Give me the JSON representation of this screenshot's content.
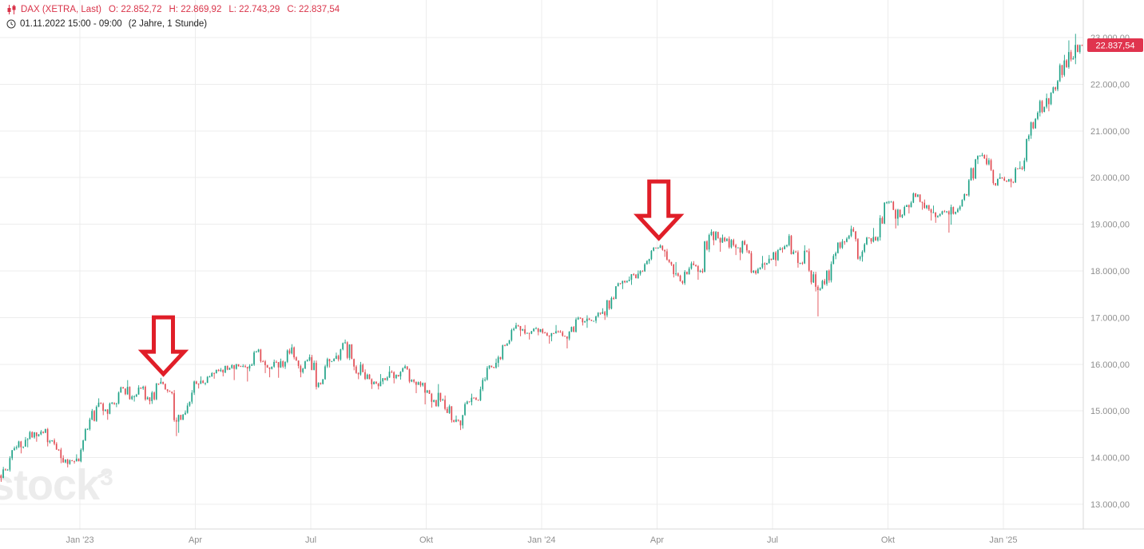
{
  "header": {
    "symbol": "DAX (XETRA, Last)",
    "accent_color": "#d93349",
    "ohlc": [
      {
        "label": "O:",
        "value": "22.852,72"
      },
      {
        "label": "H:",
        "value": "22.869,92"
      },
      {
        "label": "L:",
        "value": "22.743,29"
      },
      {
        "label": "C:",
        "value": "22.837,54"
      }
    ],
    "date_range": "01.11.2022 15:00 - 09:00",
    "period": "(2 Jahre, 1 Stunde)"
  },
  "watermark": {
    "text": "stock",
    "sup": "3"
  },
  "price_tag": {
    "value": "22.837,54",
    "price": 22837.54,
    "bg": "#e0344e",
    "text_color": "#ffffff"
  },
  "annotations": {
    "color": "#e01e28",
    "arrows": [
      {
        "shape": "arrow-down",
        "week": 18.4,
        "price": 15790
      },
      {
        "shape": "arrow-down",
        "week": 74.2,
        "price": 18700
      }
    ]
  },
  "chart_data": {
    "type": "candlestick",
    "symbol": "DAX",
    "exchange": "XETRA",
    "interval": "1 Stunde",
    "range": "2 Jahre",
    "last_candle": {
      "open": 22852.72,
      "high": 22869.92,
      "low": 22743.29,
      "close": 22837.54
    },
    "ylim": [
      12470,
      23800
    ],
    "grid": true,
    "legend_position": "none",
    "colors": {
      "up": "#1fa287",
      "down": "#e14b52",
      "grid": "#ececec",
      "axis_text": "#8f8f8f",
      "axis_line": "#d9d9d9"
    },
    "y_ticks": [
      {
        "value": 23000,
        "label": "23.000,00"
      },
      {
        "value": 22000,
        "label": "22.000,00"
      },
      {
        "value": 21000,
        "label": "21.000,00"
      },
      {
        "value": 20000,
        "label": "20.000,00"
      },
      {
        "value": 19000,
        "label": "19.000,00"
      },
      {
        "value": 18000,
        "label": "18.000,00"
      },
      {
        "value": 17000,
        "label": "17.000,00"
      },
      {
        "value": 16000,
        "label": "16.000,00"
      },
      {
        "value": 15000,
        "label": "15.000,00"
      },
      {
        "value": 14000,
        "label": "14.000,00"
      },
      {
        "value": 13000,
        "label": "13.000,00"
      }
    ],
    "x_ticks": [
      {
        "week": 9,
        "label": "Jan '23"
      },
      {
        "week": 22,
        "label": "Apr"
      },
      {
        "week": 35,
        "label": "Jul"
      },
      {
        "week": 48,
        "label": "Okt"
      },
      {
        "week": 61,
        "label": "Jan '24"
      },
      {
        "week": 74,
        "label": "Apr"
      },
      {
        "week": 87,
        "label": "Jul"
      },
      {
        "week": 100,
        "label": "Okt"
      },
      {
        "week": 113,
        "label": "Jan '25"
      }
    ],
    "x_unit": "week",
    "weeks_ohlc": [
      [
        13620,
        13800,
        13480,
        13740
      ],
      [
        13740,
        14260,
        13700,
        14225
      ],
      [
        14225,
        14440,
        14090,
        14380
      ],
      [
        14380,
        14570,
        14220,
        14540
      ],
      [
        14540,
        14590,
        14340,
        14530
      ],
      [
        14530,
        14620,
        14240,
        14370
      ],
      [
        14370,
        14410,
        13880,
        13990
      ],
      [
        13990,
        14050,
        13790,
        13940
      ],
      [
        13940,
        14070,
        13870,
        13920
      ],
      [
        13920,
        14630,
        13900,
        14610
      ],
      [
        14610,
        15120,
        14580,
        15090
      ],
      [
        15090,
        15270,
        14910,
        15030
      ],
      [
        15030,
        15190,
        14810,
        15150
      ],
      [
        15150,
        15520,
        15080,
        15480
      ],
      [
        15480,
        15660,
        15240,
        15310
      ],
      [
        15310,
        15550,
        15200,
        15480
      ],
      [
        15480,
        15540,
        15140,
        15210
      ],
      [
        15210,
        15600,
        15150,
        15580
      ],
      [
        15580,
        15710,
        15390,
        15430
      ],
      [
        15430,
        15440,
        14460,
        14770
      ],
      [
        14770,
        15010,
        14530,
        14960
      ],
      [
        14960,
        15650,
        14940,
        15630
      ],
      [
        15630,
        15740,
        15480,
        15600
      ],
      [
        15600,
        15830,
        15550,
        15810
      ],
      [
        15810,
        15920,
        15690,
        15880
      ],
      [
        15880,
        15970,
        15740,
        15920
      ],
      [
        15920,
        16010,
        15660,
        15960
      ],
      [
        15960,
        16000,
        15630,
        15910
      ],
      [
        15910,
        16290,
        15850,
        16270
      ],
      [
        16270,
        16330,
        15810,
        15980
      ],
      [
        15980,
        16100,
        15720,
        16050
      ],
      [
        16050,
        16120,
        15710,
        15950
      ],
      [
        15950,
        16430,
        15900,
        16360
      ],
      [
        16360,
        16380,
        15720,
        15830
      ],
      [
        15830,
        16210,
        15800,
        16150
      ],
      [
        16150,
        16200,
        15460,
        15600
      ],
      [
        15600,
        16140,
        15560,
        16110
      ],
      [
        16110,
        16250,
        15930,
        16180
      ],
      [
        16180,
        16530,
        16060,
        16470
      ],
      [
        16470,
        16490,
        15870,
        15950
      ],
      [
        15950,
        16050,
        15680,
        15830
      ],
      [
        15830,
        15890,
        15470,
        15570
      ],
      [
        15570,
        15790,
        15460,
        15630
      ],
      [
        15630,
        15960,
        15570,
        15840
      ],
      [
        15840,
        15870,
        15590,
        15740
      ],
      [
        15740,
        15990,
        15670,
        15890
      ],
      [
        15890,
        15910,
        15380,
        15560
      ],
      [
        15560,
        15630,
        15140,
        15390
      ],
      [
        15390,
        15450,
        15070,
        15230
      ],
      [
        15230,
        15575,
        15090,
        15240
      ],
      [
        15240,
        15330,
        14750,
        14800
      ],
      [
        14800,
        14900,
        14590,
        14690
      ],
      [
        14690,
        15220,
        14620,
        15190
      ],
      [
        15190,
        15370,
        15120,
        15230
      ],
      [
        15230,
        15960,
        15210,
        15920
      ],
      [
        15920,
        16120,
        15890,
        16030
      ],
      [
        16030,
        16420,
        15940,
        16400
      ],
      [
        16400,
        16790,
        16390,
        16760
      ],
      [
        16760,
        16890,
        16600,
        16750
      ],
      [
        16750,
        16840,
        16530,
        16710
      ],
      [
        16710,
        16800,
        16620,
        16750
      ],
      [
        16750,
        16770,
        16440,
        16600
      ],
      [
        16600,
        16840,
        16490,
        16700
      ],
      [
        16700,
        16730,
        16340,
        16550
      ],
      [
        16550,
        17000,
        16510,
        16960
      ],
      [
        16960,
        17020,
        16830,
        16920
      ],
      [
        16920,
        17050,
        16780,
        16930
      ],
      [
        16930,
        17200,
        16880,
        17120
      ],
      [
        17120,
        17450,
        16950,
        17420
      ],
      [
        17420,
        17750,
        17380,
        17730
      ],
      [
        17730,
        17880,
        17610,
        17810
      ],
      [
        17810,
        18010,
        17700,
        17940
      ],
      [
        17940,
        18230,
        17900,
        18210
      ],
      [
        18210,
        18510,
        18150,
        18490
      ],
      [
        18490,
        18570,
        18300,
        18420
      ],
      [
        18420,
        18470,
        17860,
        17930
      ],
      [
        17930,
        18190,
        17710,
        17740
      ],
      [
        17740,
        18200,
        17700,
        18160
      ],
      [
        18160,
        18210,
        17810,
        18000
      ],
      [
        18000,
        18800,
        17950,
        18770
      ],
      [
        18770,
        18890,
        18550,
        18700
      ],
      [
        18700,
        18780,
        18410,
        18690
      ],
      [
        18690,
        18740,
        18340,
        18500
      ],
      [
        18500,
        18650,
        18230,
        18560
      ],
      [
        18560,
        18580,
        17950,
        18000
      ],
      [
        18000,
        18320,
        17920,
        18160
      ],
      [
        18160,
        18340,
        18020,
        18240
      ],
      [
        18240,
        18510,
        18100,
        18480
      ],
      [
        18480,
        18790,
        18390,
        18750
      ],
      [
        18750,
        18770,
        18070,
        18170
      ],
      [
        18170,
        18550,
        18130,
        18420
      ],
      [
        18420,
        18480,
        17560,
        17660
      ],
      [
        17660,
        17810,
        17025,
        17720
      ],
      [
        17720,
        18360,
        17680,
        18320
      ],
      [
        18320,
        18680,
        18250,
        18630
      ],
      [
        18630,
        18970,
        18560,
        18900
      ],
      [
        18900,
        18940,
        18240,
        18300
      ],
      [
        18300,
        18730,
        18200,
        18700
      ],
      [
        18700,
        18920,
        18580,
        18720
      ],
      [
        18720,
        19490,
        18650,
        19470
      ],
      [
        19470,
        19500,
        18910,
        19120
      ],
      [
        19120,
        19400,
        18970,
        19370
      ],
      [
        19370,
        19680,
        19230,
        19660
      ],
      [
        19660,
        19670,
        19310,
        19460
      ],
      [
        19460,
        19530,
        19080,
        19250
      ],
      [
        19250,
        19400,
        19030,
        19220
      ],
      [
        19220,
        19290,
        18820,
        19210
      ],
      [
        19210,
        19420,
        18990,
        19320
      ],
      [
        19320,
        19660,
        19290,
        19620
      ],
      [
        19620,
        20400,
        19590,
        20390
      ],
      [
        20390,
        20530,
        20290,
        20410
      ],
      [
        20410,
        20490,
        19840,
        19880
      ],
      [
        19880,
        20090,
        19820,
        19980
      ],
      [
        19980,
        20020,
        19790,
        19910
      ],
      [
        19910,
        20350,
        19880,
        20210
      ],
      [
        20210,
        20930,
        20160,
        20900
      ],
      [
        20900,
        21420,
        20830,
        21390
      ],
      [
        21390,
        21800,
        21310,
        21700
      ],
      [
        21700,
        21950,
        21420,
        21890
      ],
      [
        21890,
        22630,
        21850,
        22510
      ],
      [
        22510,
        22940,
        22350,
        22560
      ],
      [
        22560,
        23080,
        22430,
        22838
      ]
    ]
  }
}
